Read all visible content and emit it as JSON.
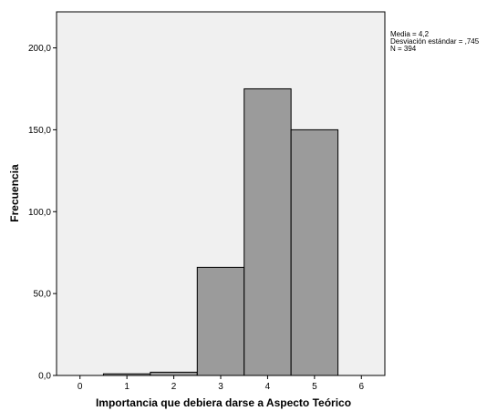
{
  "chart_data": {
    "type": "bar",
    "subtype": "histogram",
    "xlabel": "Importancia que debiera darse a Aspecto Teórico",
    "ylabel": "Frecuencia",
    "x_ticks": [
      "0",
      "1",
      "2",
      "3",
      "4",
      "5",
      "6"
    ],
    "xlim": [
      -0.5,
      6.5
    ],
    "y_ticks": [
      "0,0",
      "50,0",
      "100,0",
      "150,0",
      "200,0"
    ],
    "ylim": [
      0,
      222
    ],
    "bins": [
      {
        "from": 0.5,
        "to": 1.5,
        "value": 1
      },
      {
        "from": 1.5,
        "to": 2.5,
        "value": 2
      },
      {
        "from": 2.5,
        "to": 3.5,
        "value": 66
      },
      {
        "from": 3.5,
        "to": 4.5,
        "value": 175
      },
      {
        "from": 4.5,
        "to": 5.5,
        "value": 150
      }
    ],
    "grid": false,
    "stats": {
      "mean": "Media = 4,2",
      "std": "Desviación estándar = ,745",
      "n": "N = 394"
    },
    "colors": {
      "plot_background": "#f0f0f0",
      "bar_fill": "#9b9b9b",
      "bar_stroke": "#000000"
    }
  }
}
